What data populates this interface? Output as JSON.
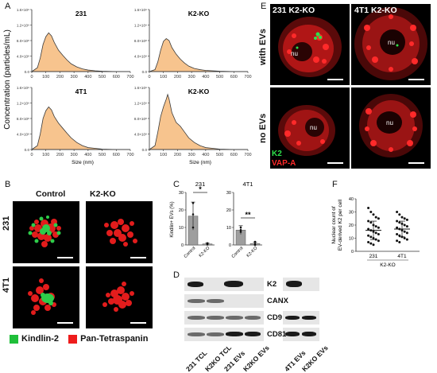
{
  "panels": {
    "A": {
      "letter": "A",
      "ylabel": "Concentration (particles/mL)",
      "xlabel": "Size (nm)",
      "ytick_labels": [
        "0.0",
        "4.0×10⁸",
        "8.0×10⁸",
        "1.2×10⁹",
        "1.6×10⁹"
      ],
      "xtick_labels": [
        "0",
        "100",
        "200",
        "300",
        "400",
        "500",
        "600",
        "700"
      ]
    },
    "B": {
      "letter": "B",
      "col_labels": [
        "Control",
        "K2-KO"
      ],
      "row_labels": [
        "231",
        "4T1"
      ],
      "legend": [
        {
          "label": "Kindlin-2",
          "color": "#2ec44a"
        },
        {
          "label": "Pan-Tetraspanin",
          "color": "#ee1c1c"
        }
      ]
    },
    "C": {
      "letter": "C",
      "ylabel": "Kindlin+ EVs (%)",
      "sig_231": "*",
      "sig_4t1": "**"
    },
    "D": {
      "letter": "D",
      "rows": [
        "K2",
        "CANX",
        "CD9",
        "CD81"
      ],
      "lanes": [
        "231 TCL",
        "K2KO TCL",
        "231 EVs",
        "K2KO EVs",
        "4T1 EVs",
        "K2KO EVs"
      ]
    },
    "E": {
      "letter": "E",
      "col_labels": [
        "231 K2-KO",
        "4T1 K2-KO"
      ],
      "row_labels": [
        "with EVs",
        "no EVs"
      ],
      "nucleus_label": "nu",
      "legend": [
        {
          "label": "K2",
          "color": "#2ec44a"
        },
        {
          "label": "VAP-A",
          "color": "#ee1c1c"
        }
      ]
    },
    "F": {
      "letter": "F",
      "ylabel_line1": "Nuclear count of",
      "ylabel_line2": "EV-derived K2 per cell",
      "categories": [
        "231",
        "4T1"
      ],
      "group_label": "K2-KO"
    }
  },
  "chart_data": [
    {
      "type": "area",
      "title": "231",
      "xlabel": "Size (nm)",
      "ylabel": "Concentration (particles/mL)",
      "xlim": [
        0,
        700
      ],
      "ylim": [
        0,
        1600000000.0
      ],
      "x": [
        0,
        40,
        60,
        80,
        100,
        120,
        140,
        160,
        190,
        220,
        250,
        280,
        320,
        360,
        400,
        450,
        500,
        600,
        700
      ],
      "y": [
        0,
        100000000.0,
        350000000.0,
        700000000.0,
        900000000.0,
        1000000000.0,
        920000000.0,
        750000000.0,
        550000000.0,
        420000000.0,
        300000000.0,
        200000000.0,
        120000000.0,
        70000000.0,
        40000000.0,
        20000000.0,
        10000000.0,
        0,
        0
      ]
    },
    {
      "type": "area",
      "title": "K2-KO",
      "xlabel": "Size (nm)",
      "ylabel": "Concentration (particles/mL)",
      "xlim": [
        0,
        700
      ],
      "ylim": [
        0,
        1600000000.0
      ],
      "x": [
        0,
        40,
        60,
        80,
        100,
        120,
        140,
        160,
        190,
        220,
        250,
        280,
        320,
        360,
        400,
        450,
        500,
        600,
        700
      ],
      "y": [
        0,
        50000000.0,
        250000000.0,
        550000000.0,
        780000000.0,
        850000000.0,
        800000000.0,
        620000000.0,
        450000000.0,
        320000000.0,
        220000000.0,
        140000000.0,
        80000000.0,
        50000000.0,
        30000000.0,
        20000000.0,
        10000000.0,
        0,
        0
      ]
    },
    {
      "type": "area",
      "title": "4T1",
      "xlabel": "Size (nm)",
      "ylabel": "Concentration (particles/mL)",
      "xlim": [
        0,
        700
      ],
      "ylim": [
        0,
        1600000000.0
      ],
      "x": [
        0,
        40,
        60,
        80,
        100,
        120,
        140,
        160,
        190,
        220,
        250,
        280,
        320,
        360,
        400,
        450,
        500,
        600,
        700
      ],
      "y": [
        0,
        100000000.0,
        400000000.0,
        800000000.0,
        1000000000.0,
        1100000000.0,
        1020000000.0,
        850000000.0,
        680000000.0,
        550000000.0,
        420000000.0,
        300000000.0,
        180000000.0,
        100000000.0,
        50000000.0,
        30000000.0,
        10000000.0,
        0,
        0
      ]
    },
    {
      "type": "area",
      "title": "K2-KO",
      "xlabel": "Size (nm)",
      "ylabel": "Concentration (particles/mL)",
      "xlim": [
        0,
        700
      ],
      "ylim": [
        0,
        1600000000.0
      ],
      "x": [
        0,
        40,
        60,
        80,
        100,
        120,
        130,
        140,
        160,
        190,
        220,
        250,
        280,
        320,
        360,
        400,
        450,
        500,
        600,
        700
      ],
      "y": [
        0,
        100000000.0,
        450000000.0,
        850000000.0,
        1100000000.0,
        1300000000.0,
        1420000000.0,
        1300000000.0,
        950000000.0,
        700000000.0,
        600000000.0,
        450000000.0,
        300000000.0,
        180000000.0,
        100000000.0,
        50000000.0,
        30000000.0,
        10000000.0,
        0,
        0
      ]
    },
    {
      "type": "bar",
      "title": "231",
      "ylabel": "Kindlin+ EVs (%)",
      "categories": [
        "Control",
        "K2-KO"
      ],
      "values": [
        16.5,
        0.6
      ],
      "errors": [
        8,
        0.5
      ],
      "points": [
        [
          10,
          17.5,
          24
        ],
        [
          0.2,
          0.6,
          1
        ]
      ],
      "ylim": [
        0,
        30
      ],
      "yticks": [
        0,
        10,
        20,
        30
      ]
    },
    {
      "type": "bar",
      "title": "4T1",
      "ylabel": "Kindlin+ EVs (%)",
      "categories": [
        "Control",
        "K2-KO"
      ],
      "values": [
        8.5,
        0.8
      ],
      "errors": [
        2.5,
        0.8
      ],
      "points": [
        [
          7.5,
          8.5,
          10
        ],
        [
          0,
          0.7,
          1.8
        ]
      ],
      "ylim": [
        0,
        30
      ],
      "yticks": [
        0,
        10,
        20,
        30
      ]
    },
    {
      "type": "scatter",
      "ylabel": "Nuclear count of EV-derived K2 per cell",
      "categories": [
        "231",
        "4T1"
      ],
      "means": [
        16,
        17
      ],
      "sd": [
        7,
        6
      ],
      "ylim": [
        0,
        40
      ],
      "yticks": [
        0,
        10,
        20,
        30,
        40
      ],
      "points": [
        [
          33,
          30,
          28,
          26,
          25,
          23,
          22,
          20,
          19,
          18,
          17,
          16,
          15,
          14,
          13,
          12,
          11,
          10,
          9,
          8,
          7,
          6,
          5
        ],
        [
          30,
          28,
          26,
          25,
          24,
          23,
          22,
          21,
          20,
          19,
          18,
          17,
          16,
          15,
          14,
          13,
          12,
          11,
          10,
          9,
          8,
          7
        ]
      ]
    }
  ]
}
